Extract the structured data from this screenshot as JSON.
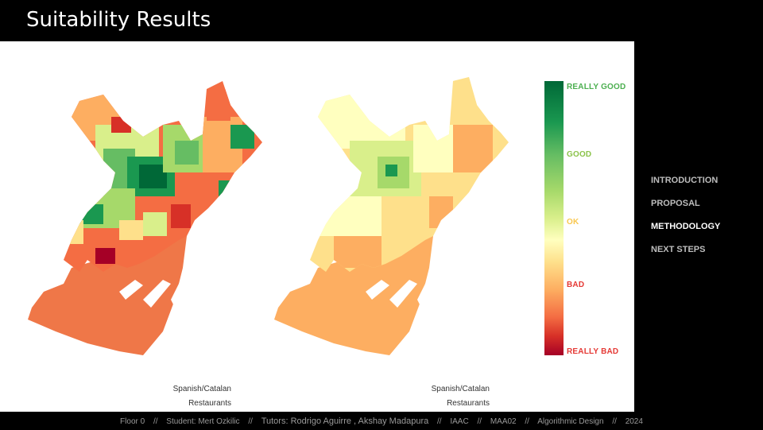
{
  "title": "Suitability Results",
  "maps": [
    {
      "caption_line1": "Spanish/Catalan",
      "caption_line2": "Restaurants"
    },
    {
      "caption_line1": "Spanish/Catalan",
      "caption_line2": "Restaurants"
    }
  ],
  "legend": {
    "labels": [
      {
        "text": "REALLY GOOD",
        "color": "#4caf50"
      },
      {
        "text": "GOOD",
        "color": "#8bc34a"
      },
      {
        "text": "OK",
        "color": "#f9c74f"
      },
      {
        "text": "BAD",
        "color": "#e53935"
      },
      {
        "text": "REALLY BAD",
        "color": "#e53935"
      }
    ]
  },
  "nav": {
    "items": [
      "INTRODUCTION",
      "PROPOSAL",
      "METHODOLOGY",
      "NEXT STEPS"
    ],
    "active": "METHODOLOGY"
  },
  "footer": {
    "floor": "Floor 0",
    "student": "Student: Mert Ozkilic",
    "tutors": "Tutors: Rodrigo Aguirre , Akshay Madapura",
    "org": "IAAC",
    "program": "MAA02",
    "course": "Algorithmic Design",
    "year": "2024",
    "separator": "//"
  }
}
